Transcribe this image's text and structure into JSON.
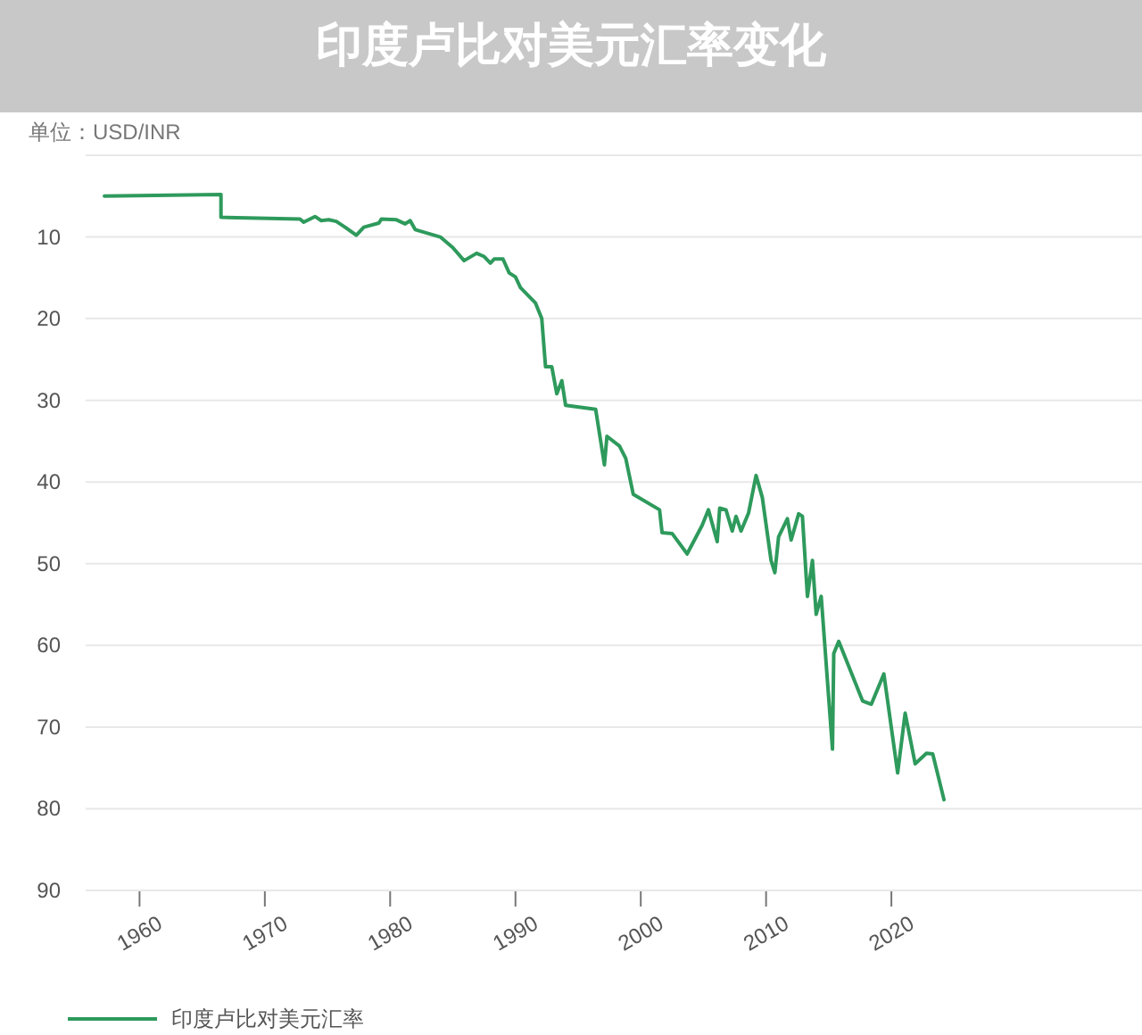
{
  "chart_data": {
    "type": "line",
    "title": "印度卢比对美元汇率变化",
    "ylabel": "单位：USD/INR",
    "xlim": [
      1955.7,
      2040
    ],
    "xticks": [
      1960,
      1970,
      1980,
      1990,
      2000,
      2010,
      2020
    ],
    "ylim": [
      90,
      0
    ],
    "yticks": [
      {
        "value": 0,
        "label": null
      },
      10,
      20,
      30,
      40,
      50,
      60,
      70,
      80,
      90
    ],
    "grid": "y",
    "legend": "bottom left",
    "series": [
      {
        "name": "印度卢比对美元汇率",
        "color": "#2e9a5c",
        "x": [
          1957.2,
          1966.5,
          1966.5,
          1972.8,
          1973.1,
          1974.0,
          1974.5,
          1975.1,
          1975.7,
          1976.4,
          1977.3,
          1977.9,
          1979.1,
          1979.3,
          1980.5,
          1981.2,
          1981.6,
          1982.0,
          1984.0,
          1985.0,
          1985.9,
          1986.9,
          1987.5,
          1988.0,
          1988.3,
          1989.0,
          1989.5,
          1990.0,
          1990.4,
          1991.6,
          1992.1,
          1992.4,
          1992.9,
          1993.3,
          1993.7,
          1994.0,
          1996.4,
          1997.1,
          1997.3,
          1998.3,
          1998.8,
          1999.4,
          2001.5,
          2001.7,
          2002.5,
          2003.7,
          2004.9,
          2005.4,
          2006.1,
          2006.3,
          2006.8,
          2007.3,
          2007.6,
          2008.0,
          2008.6,
          2009.2,
          2009.7,
          2010.4,
          2010.7,
          2011.0,
          2011.7,
          2012.0,
          2012.6,
          2012.9,
          2013.3,
          2013.7,
          2014.0,
          2014.4,
          2015.3,
          2015.4,
          2015.8,
          2017.7,
          2018.4,
          2019.4,
          2020.5,
          2021.1,
          2021.9,
          2022.8,
          2023.3,
          2024.2
        ],
        "values": [
          5.0,
          4.8,
          7.6,
          7.8,
          8.2,
          7.5,
          8.0,
          7.9,
          8.1,
          8.8,
          9.8,
          8.8,
          8.3,
          7.8,
          7.9,
          8.4,
          8.0,
          9.1,
          10.0,
          11.3,
          12.9,
          12.0,
          12.4,
          13.2,
          12.7,
          12.7,
          14.4,
          14.9,
          16.2,
          18.1,
          20.0,
          25.9,
          25.9,
          29.2,
          27.6,
          30.6,
          31.1,
          37.9,
          34.4,
          35.6,
          37.1,
          41.5,
          43.4,
          46.2,
          46.3,
          48.8,
          45.3,
          43.4,
          47.3,
          43.2,
          43.4,
          46.0,
          44.2,
          46.0,
          43.8,
          39.2,
          41.9,
          49.6,
          51.1,
          46.7,
          44.5,
          47.1,
          43.9,
          44.2,
          54.0,
          49.6,
          56.2,
          54.0,
          72.7,
          61.0,
          59.5,
          66.8,
          67.2,
          63.5,
          75.6,
          68.3,
          74.5,
          73.2,
          73.3,
          78.9
        ]
      }
    ]
  }
}
